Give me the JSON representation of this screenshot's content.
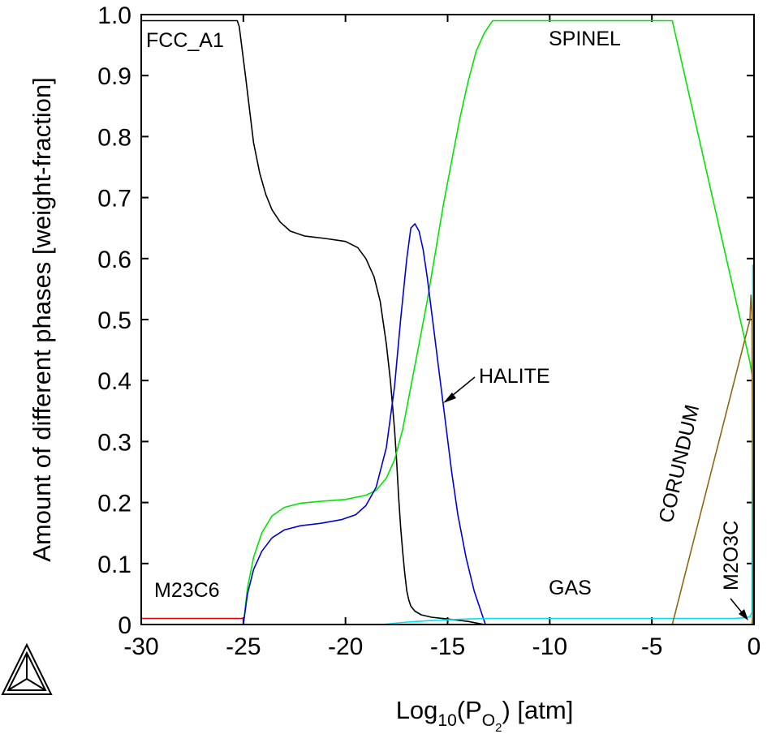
{
  "chart_data": {
    "type": "line",
    "title": "",
    "xlabel": {
      "main": "Log",
      "sub1": "10",
      "open": "(P",
      "sub2": "O",
      "sub3": "2",
      "close": ") [atm]"
    },
    "ylabel": "Amount of different phases [weight-fraction]",
    "xlim": [
      -30,
      0
    ],
    "ylim": [
      0,
      1.0
    ],
    "xticks": [
      -30,
      -25,
      -20,
      -15,
      -10,
      -5,
      0
    ],
    "xtick_labels": [
      "-30",
      "-25",
      "-20",
      "-15",
      "-10",
      "-5",
      "0"
    ],
    "yticks": [
      0,
      0.1,
      0.2,
      0.3,
      0.4,
      0.5,
      0.6,
      0.7,
      0.8,
      0.9,
      1.0
    ],
    "ytick_labels": [
      "0",
      "0.1",
      "0.2",
      "0.3",
      "0.4",
      "0.5",
      "0.6",
      "0.7",
      "0.8",
      "0.9",
      "1.0"
    ],
    "grid": false,
    "legend": "none",
    "series": [
      {
        "name": "FCC_A1",
        "color": "#000000",
        "x": [
          -30,
          -25.3,
          -25.2,
          -25.05,
          -24.9,
          -24.7,
          -24.5,
          -24.2,
          -23.9,
          -23.6,
          -23.2,
          -22.7,
          -22,
          -21,
          -20,
          -19.4,
          -19,
          -18.6,
          -18.3,
          -18,
          -17.8,
          -17.6,
          -17.5,
          -17.4,
          -17.3,
          -17.2,
          -17.1,
          -17,
          -16.9,
          -16.8,
          -16.6,
          -16.3,
          -15.8,
          -15,
          -14,
          -13.2
        ],
        "y": [
          0.99,
          0.99,
          0.98,
          0.94,
          0.9,
          0.845,
          0.79,
          0.74,
          0.705,
          0.68,
          0.66,
          0.645,
          0.637,
          0.633,
          0.628,
          0.618,
          0.6,
          0.57,
          0.53,
          0.46,
          0.4,
          0.32,
          0.27,
          0.21,
          0.16,
          0.12,
          0.085,
          0.055,
          0.04,
          0.03,
          0.022,
          0.016,
          0.012,
          0.009,
          0.005,
          0
        ]
      },
      {
        "name": "SPINEL",
        "color": "#00e600",
        "x": [
          -25,
          -24.8,
          -24.5,
          -24.1,
          -23.6,
          -23,
          -22.2,
          -21.2,
          -20,
          -19,
          -18.5,
          -18,
          -17.6,
          -17.2,
          -16.8,
          -16.4,
          -16,
          -15.6,
          -15.2,
          -14.8,
          -14.4,
          -14,
          -13.6,
          -13.2,
          -12.8,
          -12.5,
          -12,
          -4,
          -0.2,
          -0.1,
          -0.05
        ],
        "y": [
          0,
          0.06,
          0.11,
          0.15,
          0.178,
          0.192,
          0.199,
          0.202,
          0.205,
          0.212,
          0.22,
          0.24,
          0.27,
          0.32,
          0.39,
          0.46,
          0.53,
          0.61,
          0.69,
          0.76,
          0.83,
          0.89,
          0.94,
          0.97,
          0.99,
          0.99,
          0.99,
          0.99,
          0.43,
          0.41,
          0.52
        ]
      },
      {
        "name": "HALITE",
        "color": "#0000dd",
        "x": [
          -25,
          -24.8,
          -24.5,
          -24.1,
          -23.6,
          -23,
          -22.2,
          -21.2,
          -20.2,
          -19.5,
          -19,
          -18.5,
          -18,
          -17.6,
          -17.3,
          -17,
          -16.8,
          -16.6,
          -16.4,
          -16.2,
          -16,
          -15.7,
          -15.4,
          -15.1,
          -14.8,
          -14.5,
          -14.1,
          -13.7,
          -13.3,
          -13.15
        ],
        "y": [
          0,
          0.05,
          0.09,
          0.12,
          0.142,
          0.155,
          0.162,
          0.166,
          0.172,
          0.18,
          0.195,
          0.225,
          0.29,
          0.39,
          0.5,
          0.6,
          0.65,
          0.657,
          0.645,
          0.615,
          0.57,
          0.49,
          0.41,
          0.33,
          0.25,
          0.18,
          0.11,
          0.055,
          0.015,
          0
        ]
      },
      {
        "name": "GAS",
        "color": "#00e0f0",
        "x": [
          -18.2,
          -17,
          -15.5,
          -14,
          -13,
          -10,
          -5,
          -1,
          -0.5,
          -0.3,
          -0.2,
          -0.15,
          -0.1,
          -0.08,
          -0.06
        ],
        "y": [
          0,
          0.004,
          0.007,
          0.009,
          0.01,
          0.01,
          0.01,
          0.01,
          0.011,
          0.012,
          0.013,
          0.016,
          0.02,
          0.27,
          0.59
        ]
      },
      {
        "name": "CORUNDUM",
        "color": "#8b6914",
        "x": [
          -4.0,
          -0.2,
          -0.15,
          -0.1,
          -0.05
        ],
        "y": [
          0,
          0.5,
          0.54,
          0.51,
          0
        ]
      },
      {
        "name": "M2O3C",
        "color": "#8b6914",
        "x": [
          -0.1,
          -0.05,
          0
        ],
        "y": [
          0,
          0.02,
          0
        ]
      },
      {
        "name": "M23C6",
        "color": "#dd0000",
        "x": [
          -30,
          -25
        ],
        "y": [
          0.01,
          0.01
        ]
      }
    ],
    "annotations": [
      "FCC_A1",
      "SPINEL",
      "HALITE",
      "GAS",
      "CORUNDUM",
      "M2O3C",
      "M23C6"
    ]
  }
}
